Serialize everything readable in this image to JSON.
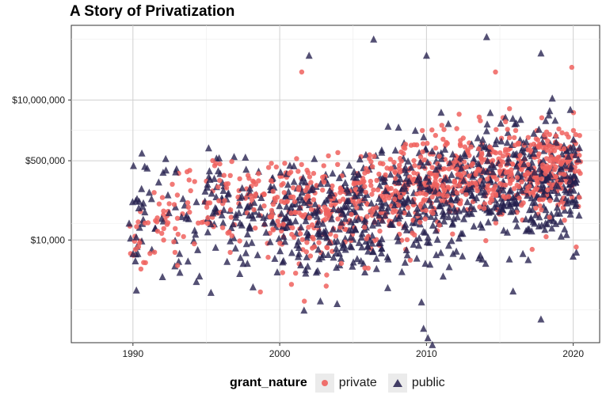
{
  "colors": {
    "private": "#F0625E",
    "public": "#241F4D",
    "grid": "#d0d0d0"
  },
  "chart_data": {
    "type": "scatter",
    "title": "A Story of Privatization",
    "xlabel": "",
    "ylabel": "",
    "x_ticks": [
      "1990",
      "2000",
      "2010",
      "2020"
    ],
    "y_ticks": [
      "$10,000",
      "$500,000",
      "$10,000,000"
    ],
    "xlim": [
      1985.8,
      2021.8
    ],
    "ylim_log10": [
      1.8,
      8.6
    ],
    "y_scale": "log",
    "grid": true,
    "legend_title": "grant_nature",
    "legend_position": "bottom",
    "series": [
      {
        "name": "private",
        "marker": "circle",
        "trend": [
          [
            1990,
            3.9
          ],
          [
            1995,
            4.95
          ],
          [
            2000,
            4.7
          ],
          [
            2003,
            4.7
          ],
          [
            2006,
            4.85
          ],
          [
            2010,
            5.25
          ],
          [
            2014,
            5.4
          ],
          [
            2020.5,
            5.55
          ]
        ],
        "sd": 0.5,
        "count": 1000,
        "outliers": [
          [
            2001.5,
            7.6
          ],
          [
            2014.7,
            7.6
          ],
          [
            2019.9,
            7.7
          ],
          [
            2000.2,
            3.3
          ],
          [
            2000.8,
            3.05
          ],
          [
            2003.2,
            3.25
          ],
          [
            2004.2,
            3.5
          ],
          [
            2005.8,
            3.4
          ],
          [
            2017.2,
            3.8
          ],
          [
            2020.2,
            3.85
          ]
        ]
      },
      {
        "name": "public",
        "marker": "triangle",
        "trend": [
          [
            1990,
            4.3
          ],
          [
            1995,
            4.85
          ],
          [
            2000,
            4.45
          ],
          [
            2003,
            4.4
          ],
          [
            2006,
            4.55
          ],
          [
            2010,
            4.85
          ],
          [
            2014,
            5.1
          ],
          [
            2020.5,
            5.25
          ]
        ],
        "sd": 0.65,
        "count": 1000,
        "outliers": [
          [
            2006.4,
            8.3
          ],
          [
            2014.1,
            8.35
          ],
          [
            2002.0,
            7.95
          ],
          [
            2010.0,
            7.95
          ],
          [
            2017.8,
            8.0
          ],
          [
            2009.8,
            2.1
          ],
          [
            2010.1,
            1.9
          ],
          [
            2010.4,
            1.75
          ],
          [
            2015.9,
            2.9
          ],
          [
            2017.8,
            2.3
          ],
          [
            1993.2,
            3.3
          ]
        ]
      }
    ]
  }
}
